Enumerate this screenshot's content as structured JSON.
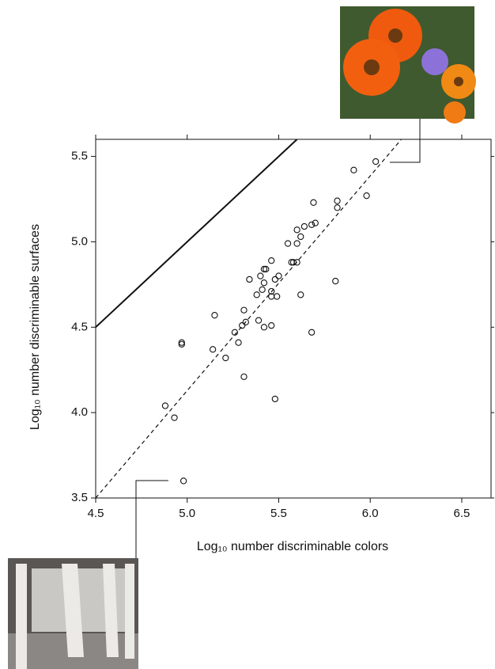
{
  "chart_data": {
    "type": "scatter",
    "x_label": "Log₁₀ number discriminable colors",
    "y_label": "Log₁₀ number discriminable surfaces",
    "xlim": [
      4.5,
      6.66
    ],
    "ylim": [
      3.5,
      5.6
    ],
    "xticks": [
      {
        "value": 4.5,
        "label": "4.5"
      },
      {
        "value": 5,
        "label": "5.0"
      },
      {
        "value": 5.5,
        "label": "5.5"
      },
      {
        "value": 6,
        "label": "6.0"
      },
      {
        "value": 6.5,
        "label": "6.5"
      }
    ],
    "yticks": [
      {
        "value": 3.5,
        "label": "3.5"
      },
      {
        "value": 4,
        "label": "4.0"
      },
      {
        "value": 4.5,
        "label": "4.5"
      },
      {
        "value": 5,
        "label": "5.0"
      },
      {
        "value": 5.5,
        "label": "5.5"
      }
    ],
    "color": "#111111",
    "x": [
      6.03,
      5.91,
      5.98,
      5.69,
      5.82,
      5.82,
      5.68,
      5.7,
      5.64,
      5.6,
      5.62,
      5.55,
      5.6,
      5.57,
      5.58,
      5.6,
      5.46,
      5.43,
      5.42,
      5.34,
      5.4,
      5.5,
      5.48,
      5.42,
      5.41,
      5.46,
      5.49,
      5.46,
      5.38,
      5.62,
      5.81,
      5.15,
      5.31,
      5.3,
      5.39,
      5.32,
      5.42,
      5.46,
      5.26,
      5.14,
      4.97,
      4.97,
      5.28,
      5.21,
      5.31,
      5.68,
      5.48,
      4.88,
      4.93,
      4.98
    ],
    "y": [
      5.47,
      5.42,
      5.27,
      5.23,
      5.24,
      5.2,
      5.1,
      5.11,
      5.09,
      5.07,
      5.03,
      4.99,
      4.99,
      4.88,
      4.88,
      4.88,
      4.89,
      4.84,
      4.84,
      4.78,
      4.8,
      4.8,
      4.78,
      4.76,
      4.72,
      4.71,
      4.68,
      4.68,
      4.69,
      4.69,
      4.77,
      4.57,
      4.6,
      4.51,
      4.54,
      4.53,
      4.5,
      4.51,
      4.47,
      4.37,
      4.41,
      4.4,
      4.41,
      4.32,
      4.21,
      4.47,
      4.08,
      4.04,
      3.97,
      3.6
    ],
    "lines": [
      {
        "style": "solid",
        "x": [
          4.5,
          5.6
        ],
        "y": [
          4.5,
          5.6
        ]
      },
      {
        "style": "dashed",
        "x": [
          4.5,
          6.17
        ],
        "y": [
          3.5,
          5.6
        ]
      }
    ]
  }
}
